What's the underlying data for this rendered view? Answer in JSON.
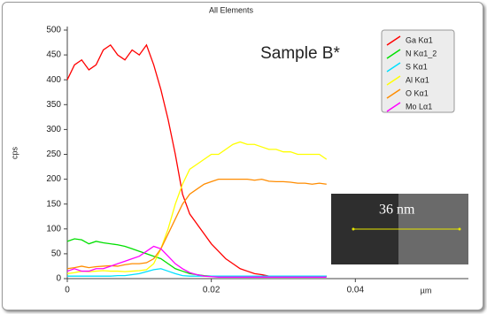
{
  "chart_data": {
    "type": "line",
    "title": "All Elements",
    "annotation": "Sample B*",
    "x_label": "µm",
    "y_label": "cps",
    "x": [
      0,
      0.001,
      0.002,
      0.003,
      0.004,
      0.005,
      0.006,
      0.007,
      0.008,
      0.009,
      0.01,
      0.011,
      0.012,
      0.013,
      0.014,
      0.015,
      0.016,
      0.017,
      0.018,
      0.019,
      0.02,
      0.021,
      0.022,
      0.023,
      0.024,
      0.025,
      0.026,
      0.027,
      0.028,
      0.029,
      0.03,
      0.031,
      0.032,
      0.033,
      0.034,
      0.035,
      0.036
    ],
    "series": [
      {
        "name": "Ga Kα1",
        "color": "#ff0000",
        "values": [
          400,
          430,
          440,
          420,
          430,
          460,
          470,
          450,
          440,
          460,
          450,
          470,
          430,
          380,
          320,
          250,
          170,
          130,
          110,
          90,
          70,
          55,
          40,
          30,
          20,
          15,
          10,
          8,
          5,
          5,
          5,
          5,
          5,
          5,
          5,
          5,
          5
        ]
      },
      {
        "name": "N Kα1_2",
        "color": "#00e000",
        "values": [
          75,
          80,
          78,
          70,
          75,
          72,
          70,
          68,
          65,
          60,
          55,
          50,
          45,
          40,
          30,
          20,
          15,
          10,
          8,
          6,
          5,
          5,
          5,
          5,
          5,
          5,
          5,
          5,
          5,
          5,
          5,
          5,
          5,
          5,
          5,
          5,
          5
        ]
      },
      {
        "name": "S Kα1",
        "color": "#00e0ff",
        "values": [
          5,
          5,
          5,
          5,
          5,
          5,
          5,
          6,
          6,
          8,
          10,
          14,
          18,
          20,
          15,
          10,
          6,
          5,
          5,
          5,
          5,
          5,
          5,
          5,
          5,
          5,
          5,
          5,
          5,
          5,
          5,
          5,
          5,
          5,
          5,
          5,
          5
        ]
      },
      {
        "name": "Al Kα1",
        "color": "#ffff00",
        "values": [
          10,
          12,
          15,
          14,
          15,
          16,
          15,
          15,
          14,
          15,
          16,
          18,
          30,
          60,
          100,
          150,
          190,
          220,
          230,
          240,
          250,
          250,
          260,
          270,
          275,
          270,
          270,
          265,
          260,
          260,
          255,
          255,
          250,
          250,
          250,
          250,
          240
        ]
      },
      {
        "name": "O Kα1",
        "color": "#ff8c00",
        "values": [
          20,
          22,
          25,
          22,
          24,
          25,
          26,
          25,
          28,
          30,
          30,
          32,
          40,
          60,
          90,
          120,
          150,
          170,
          180,
          190,
          195,
          200,
          200,
          200,
          200,
          200,
          198,
          200,
          196,
          195,
          195,
          194,
          192,
          192,
          190,
          192,
          190
        ]
      },
      {
        "name": "Mo Lα1",
        "color": "#ff00ff",
        "values": [
          15,
          20,
          15,
          15,
          20,
          20,
          25,
          30,
          35,
          40,
          45,
          55,
          65,
          60,
          45,
          30,
          20,
          12,
          8,
          5,
          4,
          3,
          3,
          3,
          3,
          3,
          3,
          3,
          3,
          3,
          3,
          3,
          3,
          3,
          3,
          3,
          3
        ]
      }
    ],
    "xlim": [
      0,
      0.0557
    ],
    "xticks": [
      0,
      0.02,
      0.04
    ],
    "ylim": [
      0,
      500
    ],
    "yticks": [
      0,
      50,
      100,
      150,
      200,
      250,
      300,
      350,
      400,
      450,
      500
    ],
    "legend": "upper right",
    "inset": {
      "scale_label": "36 nm"
    }
  }
}
